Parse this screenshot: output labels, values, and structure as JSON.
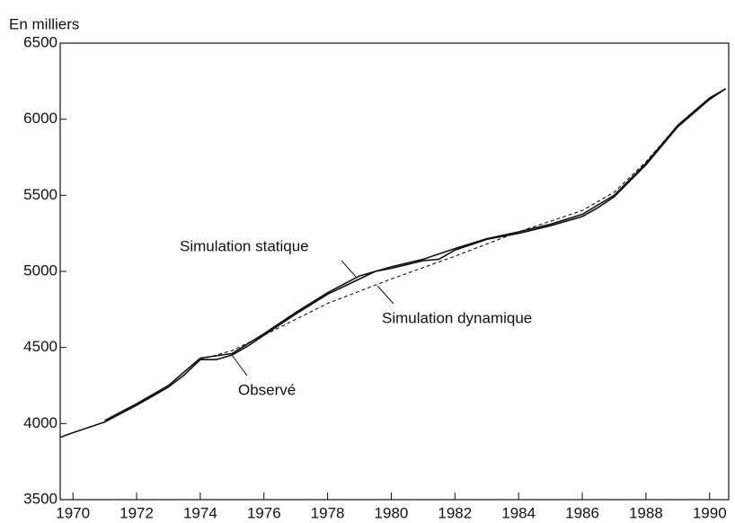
{
  "chart_data": {
    "type": "line",
    "y_label": "En milliers",
    "xlim": [
      1969.6,
      1990.6
    ],
    "ylim": [
      3500,
      6500
    ],
    "xticks": [
      1970,
      1972,
      1974,
      1976,
      1978,
      1980,
      1982,
      1984,
      1986,
      1988,
      1990
    ],
    "yticks": [
      3500,
      4000,
      4500,
      5000,
      5500,
      6000,
      6500
    ],
    "grid": false,
    "series": [
      {
        "name": "Observé",
        "color": "#111111",
        "style": "solid",
        "x": [
          1969.6,
          1970,
          1971,
          1972,
          1973,
          1973.5,
          1974,
          1974.5,
          1975,
          1975.5,
          1976,
          1977,
          1978,
          1979,
          1979.5,
          1980,
          1981,
          1981.5,
          1982,
          1983,
          1984,
          1985,
          1986,
          1986.5,
          1987,
          1988,
          1989,
          1990,
          1990.5
        ],
        "values": [
          3910,
          3940,
          4010,
          4120,
          4240,
          4320,
          4420,
          4420,
          4450,
          4510,
          4580,
          4720,
          4850,
          4950,
          5000,
          5020,
          5070,
          5080,
          5140,
          5210,
          5250,
          5300,
          5360,
          5420,
          5490,
          5700,
          5950,
          6130,
          6200
        ]
      },
      {
        "name": "Simulation statique",
        "color": "#111111",
        "style": "solid",
        "x": [
          1971,
          1972,
          1973,
          1974,
          1975,
          1976,
          1977,
          1978,
          1979,
          1980,
          1981,
          1982,
          1983,
          1984,
          1985,
          1986,
          1987,
          1988,
          1989,
          1990,
          1990.5
        ],
        "values": [
          4020,
          4130,
          4250,
          4430,
          4460,
          4590,
          4730,
          4860,
          4970,
          5030,
          5080,
          5150,
          5215,
          5260,
          5310,
          5375,
          5500,
          5710,
          5960,
          6140,
          6200
        ]
      },
      {
        "name": "Simulation dynamique",
        "color": "#111111",
        "style": "dashed",
        "x": [
          1974,
          1975,
          1976,
          1978,
          1980,
          1982,
          1984,
          1986,
          1987,
          1988,
          1989,
          1990,
          1990.5
        ],
        "values": [
          4420,
          4480,
          4580,
          4790,
          4950,
          5100,
          5260,
          5400,
          5520,
          5720,
          5960,
          6140,
          6200
        ]
      }
    ]
  }
}
